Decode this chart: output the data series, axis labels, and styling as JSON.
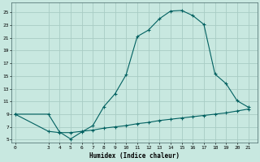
{
  "title": "",
  "xlabel": "Humidex (Indice chaleur)",
  "ylabel": "",
  "bg_color": "#c8e8e0",
  "grid_color": "#a8ccc4",
  "line_color": "#006060",
  "upper_x": [
    0,
    3,
    4,
    5,
    6,
    7,
    8,
    9,
    10,
    11,
    12,
    13,
    14,
    15,
    16,
    17,
    18,
    19,
    20,
    21
  ],
  "upper_y": [
    9.0,
    9.0,
    6.2,
    5.1,
    6.2,
    7.2,
    10.2,
    12.2,
    15.2,
    21.2,
    22.2,
    24.0,
    25.2,
    25.3,
    24.5,
    23.1,
    15.3,
    13.8,
    11.1,
    10.1
  ],
  "lower_x": [
    0,
    3,
    4,
    5,
    6,
    7,
    8,
    9,
    10,
    11,
    12,
    13,
    14,
    15,
    16,
    17,
    18,
    19,
    20,
    21
  ],
  "lower_y": [
    9.0,
    6.3,
    6.1,
    6.1,
    6.3,
    6.5,
    6.8,
    7.0,
    7.2,
    7.5,
    7.7,
    8.0,
    8.2,
    8.4,
    8.6,
    8.8,
    9.0,
    9.2,
    9.5,
    9.8
  ],
  "yticks": [
    5,
    7,
    9,
    11,
    13,
    15,
    17,
    19,
    21,
    23,
    25
  ],
  "xticks": [
    0,
    3,
    4,
    5,
    6,
    7,
    8,
    9,
    10,
    11,
    12,
    13,
    14,
    15,
    16,
    17,
    18,
    19,
    20,
    21
  ],
  "xlim": [
    -0.3,
    21.8
  ],
  "ylim": [
    4.5,
    26.5
  ],
  "marker": "+",
  "marker_size": 3,
  "line_width": 0.8
}
